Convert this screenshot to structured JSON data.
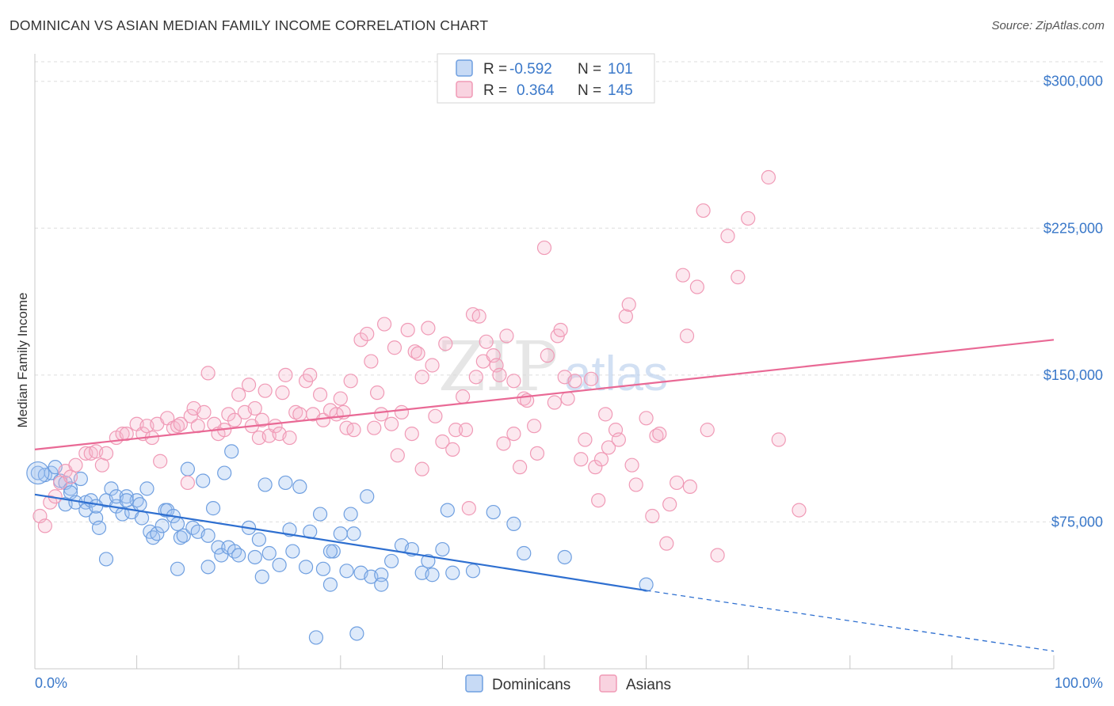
{
  "title": "DOMINICAN VS ASIAN MEDIAN FAMILY INCOME CORRELATION CHART",
  "source": "Source: ZipAtlas.com",
  "watermark": {
    "zip": "ZIP",
    "atlas": "atlas"
  },
  "legend": {
    "rows": [
      {
        "r_label": "R =",
        "r_value": "-0.592",
        "n_label": "N =",
        "n_value": "101",
        "color": "#6f9fe0"
      },
      {
        "r_label": "R =",
        "r_value": "0.364",
        "n_label": "N =",
        "n_value": "145",
        "color": "#f09ab6"
      }
    ]
  },
  "bottom_legend": [
    "Dominicans",
    "Asians"
  ],
  "chart_data": {
    "type": "scatter",
    "xlabel": "",
    "ylabel": "Median Family Income",
    "x_tick_labels": [
      "0.0%",
      "100.0%"
    ],
    "y_tick_labels": [
      "$75,000",
      "$150,000",
      "$225,000",
      "$300,000"
    ],
    "y_ticks": [
      75000,
      150000,
      225000,
      300000
    ],
    "xlim": [
      0,
      100
    ],
    "ylim": [
      0,
      310000
    ],
    "grid": true,
    "legend_position": "top-center",
    "series": [
      {
        "name": "Dominicans",
        "color": "#6f9fe0",
        "line_color": "#2e6fd0",
        "trend": {
          "x0": 0,
          "y0": 89000,
          "x1": 60,
          "y1": 40000,
          "dash_to_x": 100,
          "dash_to_y": 9000
        },
        "points": [
          [
            0.3,
            100000
          ],
          [
            1,
            99000
          ],
          [
            1.6,
            100000
          ],
          [
            2,
            103000
          ],
          [
            2.5,
            96000
          ],
          [
            3,
            95000
          ],
          [
            3,
            84000
          ],
          [
            3.5,
            92000
          ],
          [
            3.5,
            90000
          ],
          [
            4,
            85000
          ],
          [
            4.5,
            97000
          ],
          [
            5,
            85000
          ],
          [
            5,
            81000
          ],
          [
            5.5,
            86000
          ],
          [
            6,
            77000
          ],
          [
            6.3,
            72000
          ],
          [
            7,
            86000
          ],
          [
            7.5,
            92000
          ],
          [
            7,
            56000
          ],
          [
            8,
            83000
          ],
          [
            8,
            88000
          ],
          [
            8.6,
            79000
          ],
          [
            9,
            88000
          ],
          [
            9.5,
            80000
          ],
          [
            10,
            86000
          ],
          [
            10.3,
            84000
          ],
          [
            10.5,
            77000
          ],
          [
            11,
            92000
          ],
          [
            11.3,
            70000
          ],
          [
            11.6,
            67000
          ],
          [
            12,
            69000
          ],
          [
            12.5,
            73000
          ],
          [
            12.8,
            81000
          ],
          [
            13,
            81000
          ],
          [
            13.6,
            78000
          ],
          [
            14,
            74000
          ],
          [
            14,
            51000
          ],
          [
            14.3,
            67000
          ],
          [
            14.6,
            68000
          ],
          [
            15,
            102000
          ],
          [
            15.5,
            72000
          ],
          [
            16,
            70000
          ],
          [
            16.5,
            96000
          ],
          [
            17,
            52000
          ],
          [
            17.5,
            82000
          ],
          [
            18,
            62000
          ],
          [
            18.3,
            58000
          ],
          [
            18.6,
            100000
          ],
          [
            19,
            62000
          ],
          [
            19.3,
            111000
          ],
          [
            19.6,
            60000
          ],
          [
            20,
            58000
          ],
          [
            21,
            72000
          ],
          [
            21.6,
            57000
          ],
          [
            22,
            66000
          ],
          [
            22.3,
            47000
          ],
          [
            22.6,
            94000
          ],
          [
            23,
            59000
          ],
          [
            24,
            53000
          ],
          [
            24.6,
            95000
          ],
          [
            25,
            71000
          ],
          [
            25.3,
            60000
          ],
          [
            26,
            93000
          ],
          [
            26.6,
            52000
          ],
          [
            27,
            70000
          ],
          [
            27.6,
            16000
          ],
          [
            28,
            79000
          ],
          [
            28.3,
            51000
          ],
          [
            29,
            43000
          ],
          [
            29.3,
            60000
          ],
          [
            30,
            69000
          ],
          [
            30.6,
            50000
          ],
          [
            31,
            79000
          ],
          [
            31.3,
            69000
          ],
          [
            31.6,
            18000
          ],
          [
            32,
            49000
          ],
          [
            32.6,
            88000
          ],
          [
            33,
            47000
          ],
          [
            34,
            48000
          ],
          [
            34,
            43000
          ],
          [
            35,
            55000
          ],
          [
            36,
            63000
          ],
          [
            37,
            61000
          ],
          [
            38,
            49000
          ],
          [
            38.6,
            55000
          ],
          [
            39,
            48000
          ],
          [
            40,
            61000
          ],
          [
            40.5,
            81000
          ],
          [
            41,
            49000
          ],
          [
            43,
            50000
          ],
          [
            45,
            80000
          ],
          [
            47,
            74000
          ],
          [
            48,
            59000
          ],
          [
            52,
            57000
          ],
          [
            60,
            43000
          ],
          [
            29,
            60000
          ],
          [
            17,
            68000
          ],
          [
            9,
            86000
          ],
          [
            6,
            83000
          ]
        ]
      },
      {
        "name": "Asians",
        "color": "#f09ab6",
        "line_color": "#e96995",
        "trend": {
          "x0": 0,
          "y0": 112000,
          "x1": 100,
          "y1": 168000
        },
        "points": [
          [
            0.5,
            78000
          ],
          [
            1,
            73000
          ],
          [
            1.5,
            85000
          ],
          [
            2,
            88000
          ],
          [
            2.5,
            95000
          ],
          [
            3,
            101000
          ],
          [
            3.5,
            98000
          ],
          [
            4,
            104000
          ],
          [
            5,
            110000
          ],
          [
            5.5,
            110000
          ],
          [
            6,
            111000
          ],
          [
            6.6,
            104000
          ],
          [
            7,
            110000
          ],
          [
            8,
            118000
          ],
          [
            8.6,
            120000
          ],
          [
            9,
            120000
          ],
          [
            10,
            125000
          ],
          [
            10.6,
            120000
          ],
          [
            11,
            124000
          ],
          [
            11.5,
            118000
          ],
          [
            12,
            125000
          ],
          [
            12.3,
            106000
          ],
          [
            13,
            128000
          ],
          [
            13.6,
            123000
          ],
          [
            14,
            124000
          ],
          [
            14.3,
            125000
          ],
          [
            15,
            95000
          ],
          [
            15.3,
            129000
          ],
          [
            15.6,
            133000
          ],
          [
            16,
            124000
          ],
          [
            16.6,
            131000
          ],
          [
            17,
            151000
          ],
          [
            17.6,
            125000
          ],
          [
            18,
            120000
          ],
          [
            18.6,
            122000
          ],
          [
            19,
            130000
          ],
          [
            19.6,
            127000
          ],
          [
            20,
            140000
          ],
          [
            20.6,
            131000
          ],
          [
            21,
            145000
          ],
          [
            21.3,
            124000
          ],
          [
            21.6,
            133000
          ],
          [
            22,
            118000
          ],
          [
            22.3,
            127000
          ],
          [
            22.6,
            142000
          ],
          [
            23,
            119000
          ],
          [
            23.6,
            124000
          ],
          [
            24,
            120000
          ],
          [
            24.3,
            141000
          ],
          [
            24.6,
            150000
          ],
          [
            25,
            118000
          ],
          [
            25.6,
            131000
          ],
          [
            26,
            130000
          ],
          [
            26.6,
            147000
          ],
          [
            27,
            150000
          ],
          [
            27.3,
            130000
          ],
          [
            28,
            140000
          ],
          [
            28.3,
            127000
          ],
          [
            29,
            132000
          ],
          [
            29.6,
            130000
          ],
          [
            30,
            138000
          ],
          [
            30.3,
            131000
          ],
          [
            30.6,
            123000
          ],
          [
            31,
            147000
          ],
          [
            31.3,
            122000
          ],
          [
            32,
            168000
          ],
          [
            32.6,
            171000
          ],
          [
            33,
            157000
          ],
          [
            33.3,
            123000
          ],
          [
            33.6,
            141000
          ],
          [
            34,
            130000
          ],
          [
            34.3,
            176000
          ],
          [
            35,
            125000
          ],
          [
            35.3,
            164000
          ],
          [
            35.6,
            109000
          ],
          [
            36,
            131000
          ],
          [
            36.6,
            173000
          ],
          [
            37,
            120000
          ],
          [
            37.3,
            162000
          ],
          [
            37.6,
            161000
          ],
          [
            38,
            149000
          ],
          [
            38.6,
            174000
          ],
          [
            39,
            155000
          ],
          [
            39.3,
            129000
          ],
          [
            40,
            116000
          ],
          [
            40.3,
            166000
          ],
          [
            41,
            112000
          ],
          [
            41.3,
            122000
          ],
          [
            42,
            139000
          ],
          [
            42.3,
            122000
          ],
          [
            42.6,
            82000
          ],
          [
            43,
            181000
          ],
          [
            43.3,
            149000
          ],
          [
            43.6,
            180000
          ],
          [
            44,
            157000
          ],
          [
            44.3,
            167000
          ],
          [
            45,
            160000
          ],
          [
            45.3,
            155000
          ],
          [
            45.6,
            150000
          ],
          [
            46,
            115000
          ],
          [
            46.3,
            170000
          ],
          [
            47,
            147000
          ],
          [
            47.6,
            103000
          ],
          [
            48,
            138000
          ],
          [
            48.3,
            137000
          ],
          [
            49,
            124000
          ],
          [
            49.3,
            110000
          ],
          [
            50,
            215000
          ],
          [
            50.3,
            160000
          ],
          [
            51,
            136000
          ],
          [
            51.3,
            170000
          ],
          [
            51.6,
            173000
          ],
          [
            52,
            149000
          ],
          [
            52.3,
            138000
          ],
          [
            53,
            147000
          ],
          [
            53.6,
            107000
          ],
          [
            54,
            117000
          ],
          [
            54.6,
            148000
          ],
          [
            55,
            103000
          ],
          [
            55.3,
            86000
          ],
          [
            55.6,
            107000
          ],
          [
            56,
            130000
          ],
          [
            56.3,
            113000
          ],
          [
            57,
            122000
          ],
          [
            57.3,
            117000
          ],
          [
            58,
            180000
          ],
          [
            58.3,
            186000
          ],
          [
            58.6,
            104000
          ],
          [
            59,
            94000
          ],
          [
            60,
            128000
          ],
          [
            60.6,
            78000
          ],
          [
            61,
            119000
          ],
          [
            61.3,
            120000
          ],
          [
            62,
            64000
          ],
          [
            62.3,
            84000
          ],
          [
            63,
            95000
          ],
          [
            63.6,
            201000
          ],
          [
            64,
            170000
          ],
          [
            64.3,
            93000
          ],
          [
            65,
            195000
          ],
          [
            65.6,
            234000
          ],
          [
            66,
            122000
          ],
          [
            67,
            58000
          ],
          [
            68,
            221000
          ],
          [
            69,
            200000
          ],
          [
            70,
            230000
          ],
          [
            72,
            251000
          ],
          [
            75,
            81000
          ],
          [
            73,
            117000
          ],
          [
            47,
            120000
          ],
          [
            38,
            102000
          ]
        ]
      }
    ]
  }
}
